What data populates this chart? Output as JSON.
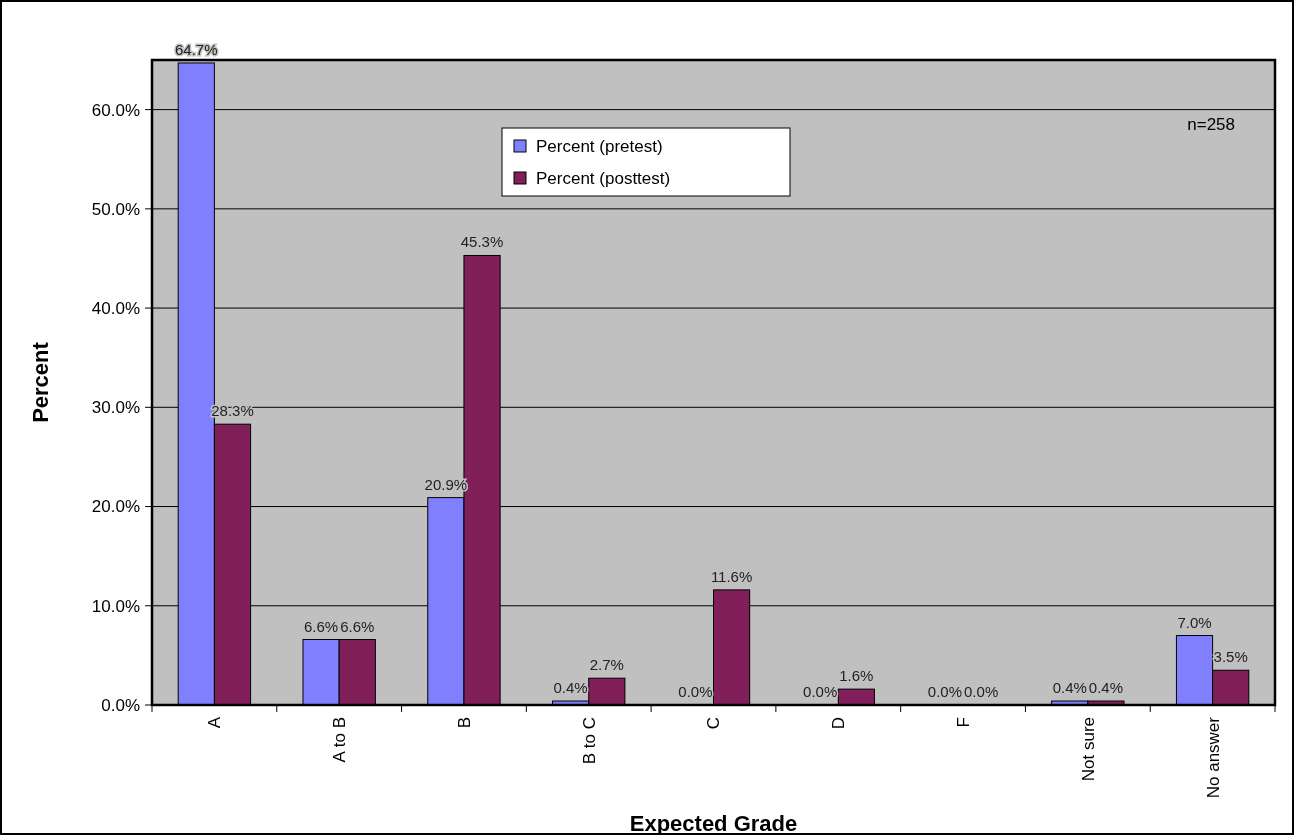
{
  "chart_data": {
    "type": "bar",
    "xlabel": "Expected Grade",
    "ylabel": "Percent",
    "categories": [
      "A",
      "A to B",
      "B",
      "B to C",
      "C",
      "D",
      "F",
      "Not sure",
      "No answer"
    ],
    "series": [
      {
        "name": "Percent (pretest)",
        "color": "#8080ff",
        "values": [
          64.7,
          6.6,
          20.9,
          0.4,
          0.0,
          0.0,
          0.0,
          0.4,
          7.0
        ],
        "value_labels": [
          "64.7%",
          "6.6%",
          "20.9%",
          "0.4%",
          "0.0%",
          "0.0%",
          "0.0%",
          "0.4%",
          "7.0%"
        ]
      },
      {
        "name": "Percent (posttest)",
        "color": "#801f5a",
        "values": [
          28.3,
          6.6,
          45.3,
          2.7,
          11.6,
          1.6,
          0.0,
          0.4,
          3.5
        ],
        "value_labels": [
          "28.3%",
          "6.6%",
          "45.3%",
          "2.7%",
          "11.6%",
          "1.6%",
          "0.0%",
          "0.4%",
          "3.5%"
        ]
      }
    ],
    "ylim": [
      0,
      65
    ],
    "yticks": [
      {
        "value": 0,
        "label": "0.0%"
      },
      {
        "value": 10,
        "label": "10.0%"
      },
      {
        "value": 20,
        "label": "20.0%"
      },
      {
        "value": 30,
        "label": "30.0%"
      },
      {
        "value": 40,
        "label": "40.0%"
      },
      {
        "value": 50,
        "label": "50.0%"
      },
      {
        "value": 60,
        "label": "60.0%"
      }
    ],
    "grid": "y",
    "legend": "top",
    "annotations": [
      "n=258"
    ]
  }
}
